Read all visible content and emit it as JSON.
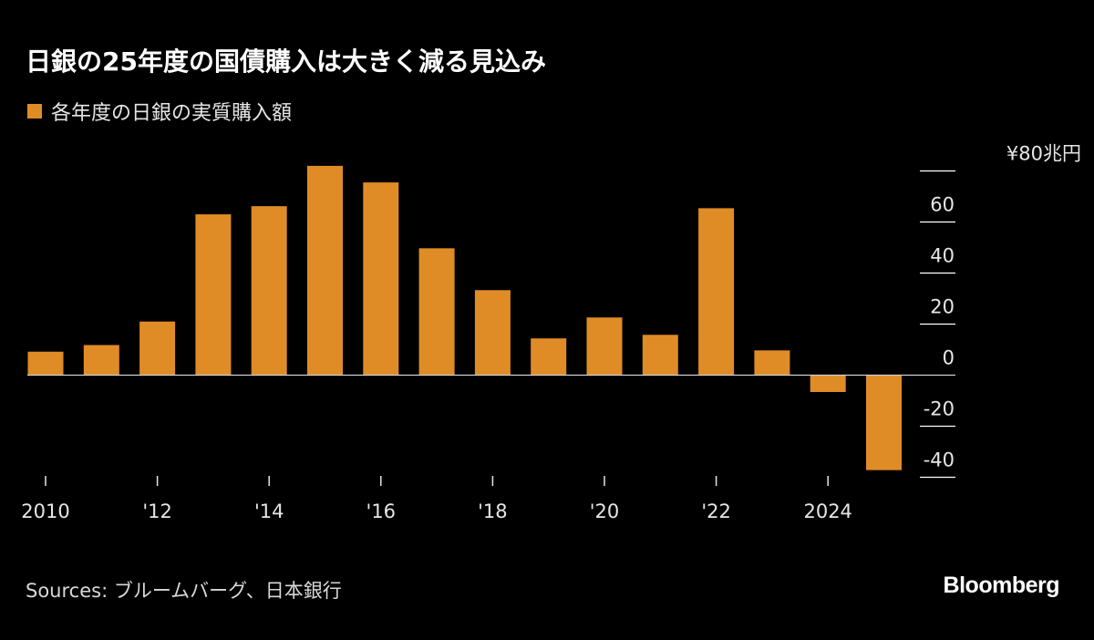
{
  "title": "日銀の25年度の国債購入は大きく減る見込み",
  "legend": {
    "label": "各年度の日銀の実質購入額"
  },
  "source": "Sources: ブルームバーグ、日本銀行",
  "logo": "Bloomberg",
  "colors": {
    "bar": "#e08c26",
    "background": "#000000",
    "gridline": "#ffffff"
  },
  "chart_data": {
    "type": "bar",
    "title": "日銀の25年度の国債購入は大きく減る見込み",
    "categories": [
      "2010",
      "2011",
      "2012",
      "2013",
      "2014",
      "2015",
      "2016",
      "2017",
      "2018",
      "2019",
      "2020",
      "2021",
      "2022",
      "2023",
      "2024",
      "2025"
    ],
    "series": [
      {
        "name": "各年度の日銀の実質購入額",
        "values": [
          9.2,
          11.8,
          21,
          63,
          66.2,
          82,
          75.5,
          49.7,
          33.3,
          14.4,
          22.6,
          15.8,
          65.4,
          9.7,
          -6.6,
          -37.2
        ]
      }
    ],
    "ylim": [
      -40,
      80
    ],
    "yticks": [
      80,
      60,
      40,
      20,
      0,
      -20,
      -40
    ],
    "ytick_labels": [
      "¥80兆円",
      "60",
      "40",
      "20",
      "0",
      "-20",
      "-40"
    ],
    "xticks": [
      "2010",
      "'12",
      "'14",
      "'16",
      "'18",
      "'20",
      "'22",
      "2024"
    ],
    "xtick_years": [
      2010,
      2012,
      2014,
      2016,
      2018,
      2020,
      2022,
      2024
    ],
    "yaxis_position": "right",
    "grid": false,
    "legend_position": "top-left"
  }
}
